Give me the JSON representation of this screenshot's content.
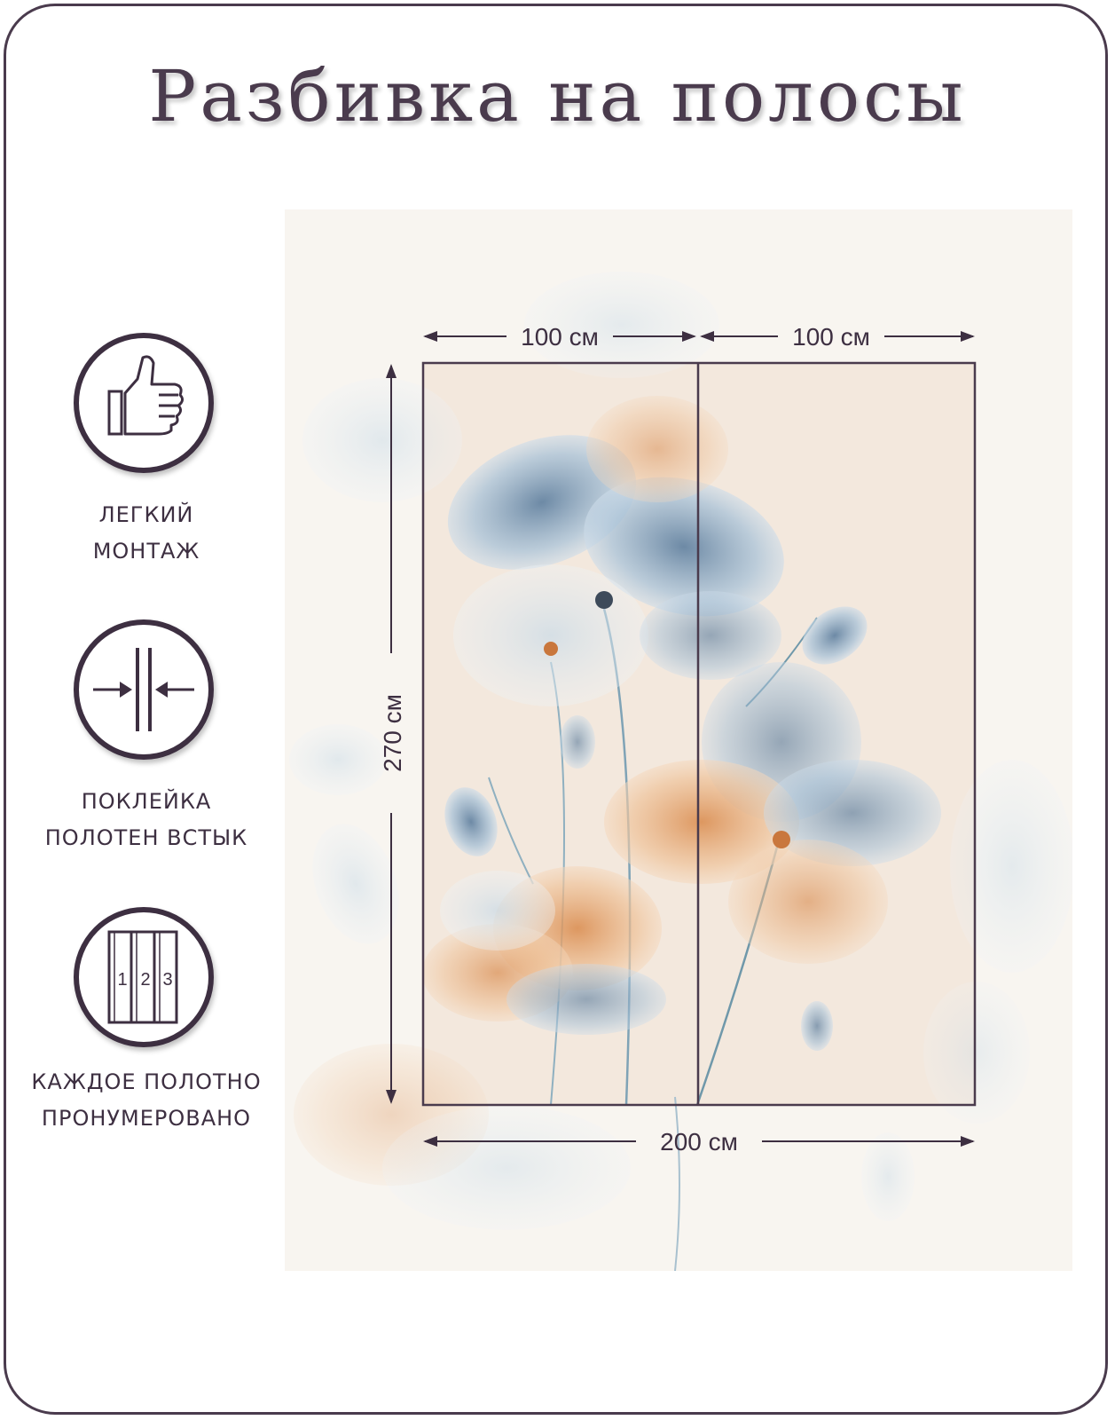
{
  "title": "Разбивка на полосы",
  "features": [
    {
      "icon": "thumbs-up-icon",
      "lines": [
        "ЛЕГКИЙ",
        "МОНТАЖ"
      ]
    },
    {
      "icon": "butt-joint-icon",
      "lines": [
        "ПОКЛЕЙКА",
        "ПОЛОТЕН ВСТЫК"
      ]
    },
    {
      "icon": "numbered-panels-icon",
      "lines": [
        "КАЖДОЕ ПОЛОТНО",
        "ПРОНУМЕРОВАНО"
      ],
      "numbers": [
        "1",
        "2",
        "3"
      ]
    }
  ],
  "dimensions": {
    "panel_widths": [
      "100 см",
      "100 см"
    ],
    "height": "270 см",
    "total_width": "200 см"
  },
  "colors": {
    "frame": "#4a3b4d",
    "text": "#3d2f41",
    "panel_fill": "#f3e8dd",
    "petal_blue": "#8fb0cc",
    "petal_orange": "#e8b07c"
  }
}
